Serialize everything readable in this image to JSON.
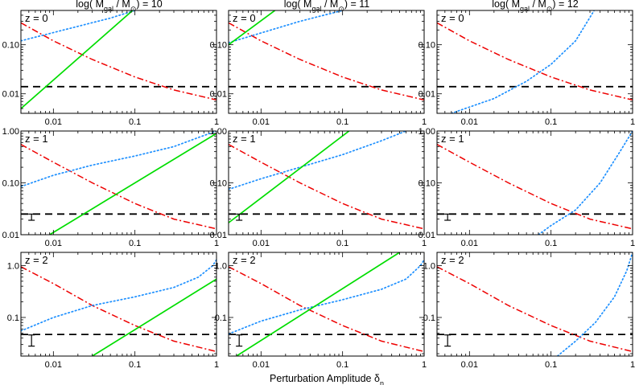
{
  "figure": {
    "xlabel_main": "Perturbation Amplitude δ",
    "xlabel_sub": "n",
    "colors": {
      "green": "#00dd00",
      "blue": "#1e90ff",
      "red": "#ee0000",
      "black": "#000000"
    }
  },
  "col_titles": [
    {
      "pre": "log( M",
      "sub1": "gal",
      "mid": " / M",
      "sub2": "⊙",
      "post": ") = 10"
    },
    {
      "pre": "log( M",
      "sub1": "gal",
      "mid": " / M",
      "sub2": "⊙",
      "post": ") = 11"
    },
    {
      "pre": "log( M",
      "sub1": "gal",
      "mid": " / M",
      "sub2": "⊙",
      "post": ") = 12"
    }
  ],
  "row_labels": [
    "z = 0",
    "z = 1",
    "z = 2"
  ],
  "chart_data": {
    "type": "line",
    "x_scale": "log",
    "y_scale": "log",
    "xlim": [
      0.004,
      1
    ],
    "x_ticks": [
      {
        "v": 0.01,
        "label": "0.01"
      },
      {
        "v": 0.1,
        "label": "0.1"
      },
      {
        "v": 1,
        "label": "1"
      }
    ],
    "rows": [
      {
        "label": "z = 0",
        "ylim": [
          0.004,
          0.5
        ],
        "y_ticks": [
          {
            "v": 0.01,
            "label": "0.01"
          },
          {
            "v": 0.1,
            "label": "0.10"
          }
        ],
        "dashed_level": 0.014,
        "error_bar": null
      },
      {
        "label": "z = 1",
        "ylim": [
          0.01,
          1.0
        ],
        "y_ticks": [
          {
            "v": 0.01,
            "label": "0.01"
          },
          {
            "v": 0.1,
            "label": "0.10"
          },
          {
            "v": 1.0,
            "label": "1.00"
          }
        ],
        "dashed_level": 0.025,
        "error_bar": {
          "x": 0.0045,
          "ylow": 0.019,
          "yhigh": 0.025
        }
      },
      {
        "label": "z = 2",
        "ylim": [
          0.018,
          1.8
        ],
        "y_ticks": [
          {
            "v": 0.1,
            "label": "0.1"
          },
          {
            "v": 1.0,
            "label": "1.0"
          }
        ],
        "dashed_level": 0.047,
        "error_bar": {
          "x": 0.0045,
          "ylow": 0.028,
          "yhigh": 0.046
        }
      }
    ],
    "panels": [
      {
        "row": 0,
        "col": 0,
        "green": {
          "x1": 0.004,
          "y1": 0.005,
          "x2": 0.1,
          "y2": 0.55
        },
        "blue": {
          "x": [
            0.004,
            0.05,
            0.1
          ],
          "y": [
            0.12,
            0.35,
            0.5
          ]
        },
        "red": {
          "x": [
            0.004,
            0.01,
            0.03,
            0.1,
            0.3,
            1
          ],
          "y": [
            0.28,
            0.12,
            0.05,
            0.022,
            0.012,
            0.0075
          ]
        }
      },
      {
        "row": 0,
        "col": 1,
        "green": {
          "x1": 0.004,
          "y1": 0.1,
          "x2": 0.016,
          "y2": 0.55
        },
        "blue": {
          "x": [
            0.004,
            0.03,
            0.1
          ],
          "y": [
            0.11,
            0.3,
            0.5
          ]
        },
        "red": {
          "x": [
            0.004,
            0.01,
            0.03,
            0.1,
            0.3,
            1
          ],
          "y": [
            0.28,
            0.12,
            0.05,
            0.022,
            0.012,
            0.0075
          ]
        }
      },
      {
        "row": 0,
        "col": 2,
        "green": null,
        "blue": {
          "x": [
            0.006,
            0.02,
            0.05,
            0.1,
            0.2,
            0.35
          ],
          "y": [
            0.004,
            0.008,
            0.018,
            0.04,
            0.12,
            0.55
          ]
        },
        "red": {
          "x": [
            0.004,
            0.01,
            0.03,
            0.1,
            0.3,
            1
          ],
          "y": [
            0.28,
            0.12,
            0.05,
            0.022,
            0.012,
            0.0075
          ]
        }
      },
      {
        "row": 1,
        "col": 0,
        "green": {
          "x1": 0.009,
          "y1": 0.01,
          "x2": 1.0,
          "y2": 0.9
        },
        "blue": {
          "x": [
            0.004,
            0.01,
            0.03,
            0.1,
            0.3,
            0.6,
            1
          ],
          "y": [
            0.085,
            0.14,
            0.22,
            0.33,
            0.5,
            0.75,
            1.0
          ]
        },
        "red": {
          "x": [
            0.004,
            0.01,
            0.03,
            0.1,
            0.3,
            1
          ],
          "y": [
            0.55,
            0.25,
            0.1,
            0.04,
            0.02,
            0.013
          ]
        }
      },
      {
        "row": 1,
        "col": 1,
        "green": {
          "x1": 0.004,
          "y1": 0.017,
          "x2": 0.12,
          "y2": 1.0
        },
        "blue": {
          "x": [
            0.004,
            0.01,
            0.03,
            0.1,
            0.3,
            0.6
          ],
          "y": [
            0.075,
            0.12,
            0.2,
            0.35,
            0.65,
            1.0
          ]
        },
        "red": {
          "x": [
            0.004,
            0.01,
            0.03,
            0.1,
            0.3,
            1
          ],
          "y": [
            0.55,
            0.25,
            0.1,
            0.04,
            0.02,
            0.013
          ]
        }
      },
      {
        "row": 1,
        "col": 2,
        "green": null,
        "blue": {
          "x": [
            0.07,
            0.1,
            0.2,
            0.4,
            0.7,
            1
          ],
          "y": [
            0.01,
            0.015,
            0.03,
            0.1,
            0.4,
            1.0
          ]
        },
        "red": {
          "x": [
            0.004,
            0.01,
            0.03,
            0.1,
            0.3,
            1
          ],
          "y": [
            0.55,
            0.25,
            0.1,
            0.04,
            0.02,
            0.013
          ]
        }
      },
      {
        "row": 2,
        "col": 0,
        "green": {
          "x1": 0.03,
          "y1": 0.018,
          "x2": 1.0,
          "y2": 0.55
        },
        "blue": {
          "x": [
            0.004,
            0.01,
            0.03,
            0.1,
            0.3,
            0.6,
            0.9,
            1
          ],
          "y": [
            0.055,
            0.1,
            0.17,
            0.25,
            0.38,
            0.6,
            1.0,
            1.3
          ]
        },
        "red": {
          "x": [
            0.004,
            0.01,
            0.03,
            0.1,
            0.3,
            1
          ],
          "y": [
            0.95,
            0.45,
            0.17,
            0.07,
            0.035,
            0.022
          ]
        }
      },
      {
        "row": 2,
        "col": 1,
        "green": {
          "x1": 0.005,
          "y1": 0.018,
          "x2": 0.5,
          "y2": 1.8
        },
        "blue": {
          "x": [
            0.004,
            0.01,
            0.03,
            0.1,
            0.3,
            0.6,
            0.9,
            1
          ],
          "y": [
            0.048,
            0.085,
            0.14,
            0.22,
            0.35,
            0.55,
            1.0,
            1.3
          ]
        },
        "red": {
          "x": [
            0.004,
            0.01,
            0.03,
            0.1,
            0.3,
            1
          ],
          "y": [
            0.95,
            0.45,
            0.17,
            0.07,
            0.035,
            0.022
          ]
        }
      },
      {
        "row": 2,
        "col": 2,
        "green": null,
        "blue": {
          "x": [
            0.12,
            0.2,
            0.35,
            0.6,
            0.85,
            1
          ],
          "y": [
            0.018,
            0.035,
            0.08,
            0.25,
            0.8,
            1.8
          ]
        },
        "red": {
          "x": [
            0.004,
            0.01,
            0.03,
            0.1,
            0.3,
            1
          ],
          "y": [
            0.95,
            0.45,
            0.17,
            0.07,
            0.035,
            0.022
          ]
        }
      }
    ]
  }
}
